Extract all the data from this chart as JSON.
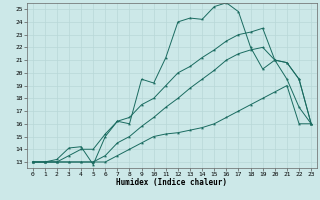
{
  "title": "",
  "xlabel": "Humidex (Indice chaleur)",
  "background_color": "#cce8e8",
  "grid_color": "#aacccc",
  "line_color": "#1a6b60",
  "xlim": [
    -0.5,
    23.5
  ],
  "ylim": [
    12.5,
    25.5
  ],
  "xticks": [
    0,
    1,
    2,
    3,
    4,
    5,
    6,
    7,
    8,
    9,
    10,
    11,
    12,
    13,
    14,
    15,
    16,
    17,
    18,
    19,
    20,
    21,
    22,
    23
  ],
  "yticks": [
    13,
    14,
    15,
    16,
    17,
    18,
    19,
    20,
    21,
    22,
    23,
    24,
    25
  ],
  "series": [
    [
      13.0,
      13.0,
      13.2,
      14.1,
      14.2,
      12.8,
      15.0,
      16.2,
      16.0,
      19.5,
      19.2,
      21.2,
      24.0,
      24.3,
      24.2,
      25.2,
      25.5,
      24.8,
      22.0,
      20.3,
      21.0,
      19.5,
      17.3,
      16.0
    ],
    [
      13.0,
      13.0,
      13.0,
      13.5,
      14.0,
      14.0,
      15.2,
      16.2,
      16.5,
      17.5,
      18.0,
      19.0,
      20.0,
      20.5,
      21.2,
      21.8,
      22.5,
      23.0,
      23.2,
      23.5,
      21.0,
      20.8,
      19.5,
      16.0
    ],
    [
      13.0,
      13.0,
      13.0,
      13.0,
      13.0,
      13.0,
      13.5,
      14.5,
      15.0,
      15.8,
      16.5,
      17.3,
      18.0,
      18.8,
      19.5,
      20.2,
      21.0,
      21.5,
      21.8,
      22.0,
      21.0,
      20.8,
      19.5,
      16.0
    ],
    [
      13.0,
      13.0,
      13.0,
      13.0,
      13.0,
      13.0,
      13.0,
      13.5,
      14.0,
      14.5,
      15.0,
      15.2,
      15.3,
      15.5,
      15.7,
      16.0,
      16.5,
      17.0,
      17.5,
      18.0,
      18.5,
      19.0,
      16.0,
      16.0
    ]
  ]
}
